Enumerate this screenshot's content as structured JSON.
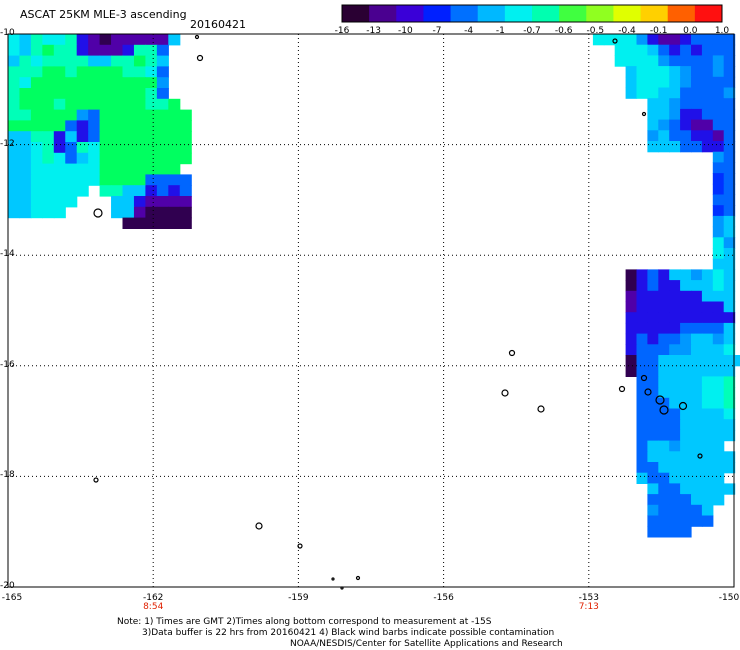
{
  "header": {
    "title": "ASCAT 25KM MLE-3 ascending",
    "date": "20160421"
  },
  "colorbar": {
    "labels": [
      "-16",
      "-13",
      "-10",
      "-7",
      "-4",
      "-1",
      "-0.7",
      "-0.6",
      "-0.5",
      "-0.4",
      "-0.1",
      "0.0",
      "1.0"
    ],
    "colors": [
      "#2a0033",
      "#4a0090",
      "#3a00d8",
      "#0020ff",
      "#0070ff",
      "#00b8ff",
      "#00f0f0",
      "#00ffb0",
      "#40ff40",
      "#90ff20",
      "#e0ff00",
      "#ffd000",
      "#ff6000",
      "#ff1010"
    ]
  },
  "axes": {
    "lat_labels": [
      "-10",
      "-12",
      "-14",
      "-16",
      "-18",
      "-20"
    ],
    "lon_labels": [
      "-165",
      "-162",
      "-159",
      "-156",
      "-153",
      "-150"
    ],
    "time_labels": [
      {
        "text": "8:54",
        "lon": -162
      },
      {
        "text": "7:13",
        "lon": -153
      }
    ]
  },
  "notes": {
    "line1": "Note: 1) Times are GMT 2)Times along bottom correspond to measurement at -15S",
    "line2": "3)Data buffer is 22 hrs from 20160421 4) Black wind barbs indicate possible contamination",
    "line3": "NOAA/NESDIS/Center for Satellite Applications and Research"
  },
  "map": {
    "projection": "lat-lon",
    "lon_range": [
      -165,
      -150
    ],
    "lat_range": [
      -20,
      -10
    ],
    "grid": "dotted",
    "swaths": [
      {
        "name": "west-swath",
        "lon_range": [
          -164.8,
          -160.8
        ],
        "lat_range": [
          -13.6,
          -10.0
        ],
        "dominant_color": "green-cyan"
      },
      {
        "name": "east-swath",
        "lon_range": [
          -152.9,
          -150.0
        ],
        "lat_range": [
          -19.4,
          -10.0
        ],
        "dominant_color": "cyan-blue"
      }
    ]
  }
}
